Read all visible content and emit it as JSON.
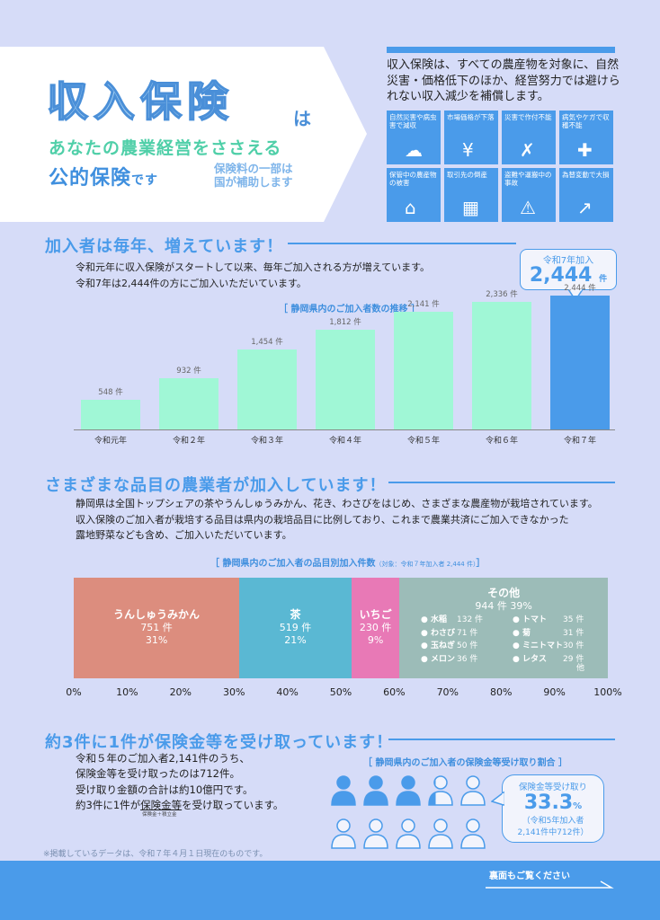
{
  "hero": {
    "title": "収入保険",
    "title_particle": "は",
    "subtitle1": "あなたの農業経営をささえる",
    "subtitle2": "公的保険",
    "subtitle2_suffix": "です",
    "subtitle3_line1": "保険料の一部は",
    "subtitle3_line2": "国が補助します"
  },
  "intro": {
    "text": "収入保険は、すべての農産物を対象に、自然災害・価格低下のほか、経営努力では避けられない収入減少を補償します。"
  },
  "risks": [
    {
      "label": "自然災害や病虫害で減収",
      "icon": "cloud-icon",
      "glyph": "☁"
    },
    {
      "label": "市場価格が下落",
      "icon": "money-bag-icon",
      "glyph": "¥"
    },
    {
      "label": "災害で作付不能",
      "icon": "dead-plant-icon",
      "glyph": "✗"
    },
    {
      "label": "病気やケガで収穫不能",
      "icon": "injured-foot-icon",
      "glyph": "✚"
    },
    {
      "label": "保管中の農産物の被害",
      "icon": "flooded-house-icon",
      "glyph": "⌂"
    },
    {
      "label": "取引先の倒産",
      "icon": "building-icon",
      "glyph": "▦"
    },
    {
      "label": "盗難や運搬中の事故",
      "icon": "broken-box-icon",
      "glyph": "⚠"
    },
    {
      "label": "為替変動で大損",
      "icon": "exchange-chart-icon",
      "glyph": "↗"
    }
  ],
  "section1": {
    "heading": "加入者は毎年、増えています！",
    "line1": "令和元年に収入保険がスタートして以来、毎年ご加入される方が増えています。",
    "line2": "令和7年は2,444件の方にご加入いただいています。",
    "chart_caption": "［ 静岡県内のご加入者数の推移 ］",
    "callout_label": "令和7年加入",
    "callout_value": "2,444",
    "callout_unit": "件"
  },
  "chart_data": [
    {
      "type": "bar",
      "title": "［ 静岡県内のご加入者数の推移 ］",
      "categories": [
        "令和元年",
        "令和２年",
        "令和３年",
        "令和４年",
        "令和５年",
        "令和６年",
        "令和７年"
      ],
      "values": [
        548,
        932,
        1454,
        1812,
        2141,
        2336,
        2444
      ],
      "value_labels": [
        "548 件",
        "932 件",
        "1,454 件",
        "1,812 件",
        "2,141 件",
        "2,336 件",
        "2,444 件"
      ],
      "highlight_color": "#4a9bea",
      "bar_color": "#a0f7d6",
      "ylim": [
        0,
        2600
      ]
    },
    {
      "type": "bar",
      "title": "［ 静岡県内のご加入者の品目別加入件数 ］",
      "note": "（対象：令和７年加入者 2,444 件）",
      "stacked": true,
      "orientation": "horizontal",
      "series": [
        {
          "name": "うんしゅうみかん",
          "count": "751 件",
          "pct": "31%",
          "value": 31,
          "color": "#dc8d7e"
        },
        {
          "name": "茶",
          "count": "519 件",
          "pct": "21%",
          "value": 21,
          "color": "#5ab8d3"
        },
        {
          "name": "いちご",
          "count": "230 件",
          "pct": "9%",
          "value": 9,
          "color": "#e879b6"
        },
        {
          "name": "その他",
          "count": "944 件",
          "pct": "39%",
          "value": 39,
          "color": "#9cbcb8"
        }
      ],
      "xticks": [
        "0%",
        "10%",
        "20%",
        "30%",
        "40%",
        "50%",
        "60%",
        "70%",
        "80%",
        "90%",
        "100%"
      ],
      "others_left": [
        {
          "name": "水稲",
          "count": "132 件"
        },
        {
          "name": "わさび",
          "count": "71 件"
        },
        {
          "name": "玉ねぎ",
          "count": "50 件"
        },
        {
          "name": "メロン",
          "count": "36 件"
        }
      ],
      "others_right": [
        {
          "name": "トマト",
          "count": "35 件"
        },
        {
          "name": "菊",
          "count": "31 件"
        },
        {
          "name": "ミニトマト",
          "count": "30 件"
        },
        {
          "name": "レタス",
          "count": "29 件"
        }
      ],
      "others_tail": "他"
    }
  ],
  "section2": {
    "heading": "さまざまな品目の農業者が加入しています！",
    "line1": "静岡県は全国トップシェアの茶やうんしゅうみかん、花き、わさびをはじめ、さまざまな農産物が栽培されています。",
    "line2": "収入保険のご加入者が栽培する品目は県内の栽培品目に比例しており、これまで農業共済にご加入できなかった",
    "line3": "露地野菜なども含め、ご加入いただいています。",
    "caption": "［ 静岡県内のご加入者の品目別加入件数",
    "caption_note": "（対象：令和７年加入者 2,444 件）",
    "caption_end": "］"
  },
  "section3": {
    "heading": "約3件に1件が保険金等を受け取っています！",
    "line1": "令和５年のご加入者2,141件のうち、",
    "line2": "保険金等を受け取ったのは712件。",
    "line3": "受け取り金額の合計は約10億円です。",
    "line4_pre": "約3件に1件が",
    "line4_u": "保険金等",
    "line4_post": "を受け取っています。",
    "small_note": "保険金＋積立金",
    "caption": "［ 静岡県内のご加入者の保険金等受け取り割合 ］",
    "bubble_label": "保険金等受け取り",
    "bubble_value": "33.3",
    "bubble_unit": "%",
    "bubble_sub1": "（令和5年加入者",
    "bubble_sub2": "2,141件中712件）",
    "received_ratio": 0.333
  },
  "footer": {
    "note": "※掲載しているデータは、令和７年４月１日現在のものです。",
    "back_text": "裏面もご覧ください"
  },
  "colors": {
    "primary": "#4a9bea",
    "mint": "#a0f7d6",
    "background": "#d6dcf8"
  }
}
